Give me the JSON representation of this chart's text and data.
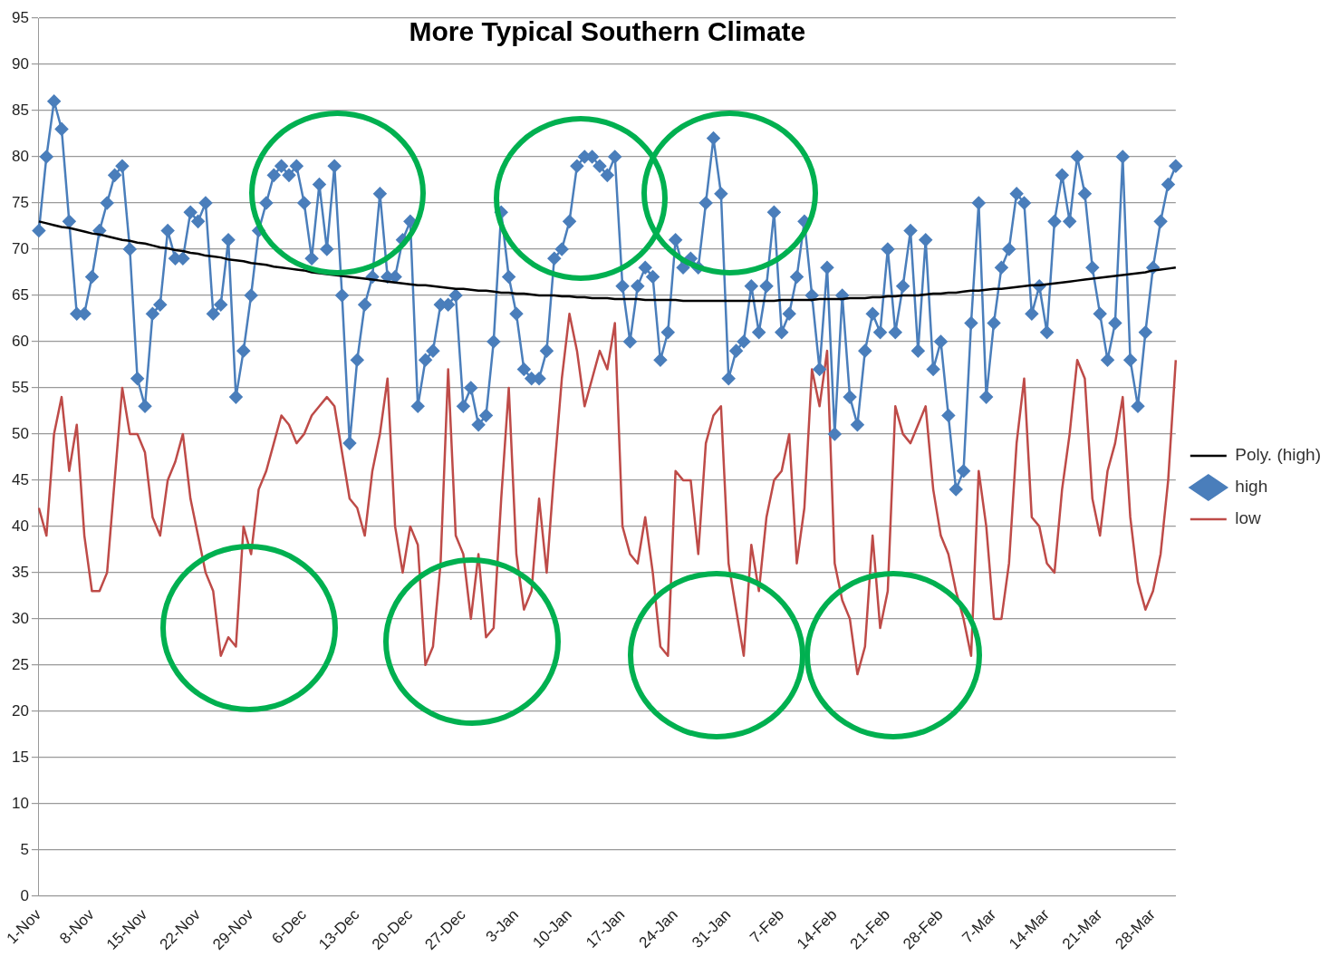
{
  "chart_data": {
    "type": "line",
    "title": "More Typical Southern Climate",
    "categories": [
      "1-Nov",
      null,
      null,
      null,
      null,
      null,
      null,
      "8-Nov",
      null,
      null,
      null,
      null,
      null,
      null,
      "15-Nov",
      null,
      null,
      null,
      null,
      null,
      null,
      "22-Nov",
      null,
      null,
      null,
      null,
      null,
      null,
      "29-Nov",
      null,
      null,
      null,
      null,
      null,
      null,
      "6-Dec",
      null,
      null,
      null,
      null,
      null,
      null,
      "13-Dec",
      null,
      null,
      null,
      null,
      null,
      null,
      "20-Dec",
      null,
      null,
      null,
      null,
      null,
      null,
      "27-Dec",
      null,
      null,
      null,
      null,
      null,
      null,
      "3-Jan",
      null,
      null,
      null,
      null,
      null,
      null,
      "10-Jan",
      null,
      null,
      null,
      null,
      null,
      null,
      "17-Jan",
      null,
      null,
      null,
      null,
      null,
      null,
      "24-Jan",
      null,
      null,
      null,
      null,
      null,
      null,
      "31-Jan",
      null,
      null,
      null,
      null,
      null,
      null,
      "7-Feb",
      null,
      null,
      null,
      null,
      null,
      null,
      "14-Feb",
      null,
      null,
      null,
      null,
      null,
      null,
      "21-Feb",
      null,
      null,
      null,
      null,
      null,
      null,
      "28-Feb",
      null,
      null,
      null,
      null,
      null,
      null,
      "7-Mar",
      null,
      null,
      null,
      null,
      null,
      null,
      "14-Mar",
      null,
      null,
      null,
      null,
      null,
      null,
      "21-Mar",
      null,
      null,
      null,
      null,
      null,
      null,
      "28-Mar",
      null,
      null,
      null
    ],
    "series": [
      {
        "name": "high",
        "color": "#4a7ebb",
        "marker": "diamond",
        "values": [
          72,
          80,
          86,
          83,
          73,
          63,
          63,
          67,
          72,
          75,
          78,
          79,
          70,
          56,
          53,
          63,
          64,
          72,
          69,
          69,
          74,
          73,
          75,
          63,
          64,
          71,
          54,
          59,
          65,
          72,
          75,
          78,
          79,
          78,
          79,
          75,
          69,
          77,
          70,
          79,
          65,
          49,
          58,
          64,
          67,
          76,
          67,
          67,
          71,
          73,
          53,
          58,
          59,
          64,
          64,
          65,
          53,
          55,
          51,
          52,
          60,
          74,
          67,
          63,
          57,
          56,
          56,
          59,
          69,
          70,
          73,
          79,
          80,
          80,
          79,
          78,
          80,
          66,
          60,
          66,
          68,
          67,
          58,
          61,
          71,
          68,
          69,
          68,
          75,
          82,
          76,
          56,
          59,
          60,
          66,
          61,
          66,
          74,
          61,
          63,
          67,
          73,
          65,
          57,
          68,
          50,
          65,
          54,
          51,
          59,
          63,
          61,
          70,
          61,
          66,
          72,
          59,
          71,
          57,
          60,
          52,
          44,
          46,
          62,
          75,
          54,
          62,
          68,
          70,
          76,
          75,
          63,
          66,
          61,
          73,
          78,
          73,
          80,
          76,
          68,
          63,
          58,
          62,
          80,
          58,
          53,
          61,
          68,
          73,
          77,
          79
        ]
      },
      {
        "name": "low",
        "color": "#be4b48",
        "marker": "none",
        "values": [
          42,
          39,
          50,
          54,
          46,
          51,
          39,
          33,
          33,
          35,
          45,
          55,
          50,
          50,
          48,
          41,
          39,
          45,
          47,
          50,
          43,
          39,
          35,
          33,
          26,
          28,
          27,
          40,
          37,
          44,
          46,
          49,
          52,
          51,
          49,
          50,
          52,
          53,
          54,
          53,
          48,
          43,
          42,
          39,
          46,
          50,
          56,
          40,
          35,
          40,
          38,
          25,
          27,
          36,
          57,
          39,
          37,
          30,
          37,
          28,
          29,
          43,
          55,
          37,
          31,
          33,
          43,
          35,
          46,
          56,
          63,
          59,
          53,
          56,
          59,
          57,
          62,
          40,
          37,
          36,
          41,
          35,
          27,
          26,
          46,
          45,
          45,
          37,
          49,
          52,
          53,
          36,
          31,
          26,
          38,
          33,
          41,
          45,
          46,
          50,
          36,
          42,
          57,
          53,
          59,
          36,
          32,
          30,
          24,
          27,
          39,
          29,
          33,
          53,
          50,
          49,
          51,
          53,
          44,
          39,
          37,
          33,
          30,
          26,
          46,
          40,
          30,
          30,
          36,
          49,
          56,
          41,
          40,
          36,
          35,
          44,
          50,
          58,
          56,
          43,
          39,
          46,
          49,
          54,
          41,
          34,
          31,
          33,
          37,
          45,
          58
        ]
      },
      {
        "name": "Poly. (high)",
        "type": "line",
        "color": "#000000",
        "marker": "none",
        "values": [
          73.0,
          72.8,
          72.6,
          72.4,
          72.3,
          72.1,
          71.9,
          71.7,
          71.6,
          71.4,
          71.2,
          71.0,
          70.9,
          70.7,
          70.6,
          70.4,
          70.2,
          70.1,
          69.9,
          69.8,
          69.6,
          69.5,
          69.3,
          69.2,
          69.1,
          68.9,
          68.8,
          68.7,
          68.5,
          68.4,
          68.3,
          68.1,
          68.0,
          67.9,
          67.8,
          67.7,
          67.5,
          67.4,
          67.3,
          67.2,
          67.1,
          67.0,
          66.9,
          66.8,
          66.7,
          66.6,
          66.5,
          66.4,
          66.3,
          66.2,
          66.1,
          66.1,
          66.0,
          65.9,
          65.8,
          65.7,
          65.7,
          65.6,
          65.5,
          65.5,
          65.4,
          65.3,
          65.3,
          65.2,
          65.2,
          65.1,
          65.0,
          65.0,
          65.0,
          64.9,
          64.9,
          64.8,
          64.8,
          64.7,
          64.7,
          64.7,
          64.6,
          64.6,
          64.6,
          64.6,
          64.5,
          64.5,
          64.5,
          64.5,
          64.5,
          64.4,
          64.4,
          64.4,
          64.4,
          64.4,
          64.4,
          64.4,
          64.4,
          64.4,
          64.4,
          64.4,
          64.4,
          64.4,
          64.5,
          64.5,
          64.5,
          64.5,
          64.5,
          64.6,
          64.6,
          64.6,
          64.6,
          64.7,
          64.7,
          64.7,
          64.8,
          64.8,
          64.9,
          64.9,
          65.0,
          65.0,
          65.0,
          65.1,
          65.2,
          65.2,
          65.3,
          65.3,
          65.4,
          65.5,
          65.5,
          65.6,
          65.7,
          65.7,
          65.8,
          65.9,
          66.0,
          66.1,
          66.1,
          66.2,
          66.3,
          66.4,
          66.5,
          66.6,
          66.7,
          66.8,
          66.9,
          67.0,
          67.1,
          67.2,
          67.3,
          67.4,
          67.5,
          67.7,
          67.8,
          67.9,
          68.0
        ]
      }
    ],
    "ylim": [
      0,
      95
    ],
    "yticks": [
      0,
      5,
      10,
      15,
      20,
      25,
      30,
      35,
      40,
      45,
      50,
      55,
      60,
      65,
      70,
      75,
      80,
      85,
      90,
      95
    ],
    "grid": "y",
    "legend": "right",
    "line_style": "solid"
  }
}
